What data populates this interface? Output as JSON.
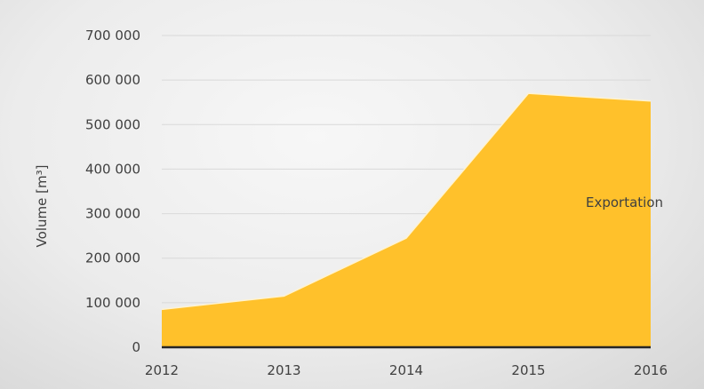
{
  "chart_data": {
    "type": "area",
    "x": [
      "2012",
      "2013",
      "2014",
      "2015",
      "2016"
    ],
    "series": [
      {
        "name": "Exportation",
        "values": [
          85000,
          115000,
          245000,
          570000,
          553000
        ],
        "color": "#ffc12b"
      }
    ],
    "y_ticks": [
      "0",
      "100 000",
      "200 000",
      "300 000",
      "400 000",
      "500 000",
      "600 000",
      "700 000"
    ],
    "ylim": [
      0,
      700000
    ],
    "ylabel": "Volume [m³]",
    "xlabel": "",
    "title": "",
    "grid": true,
    "legend_position": "right",
    "colors": {
      "gridline": "#d9d9d9",
      "baseline": "#262626",
      "text": "#404040"
    }
  }
}
